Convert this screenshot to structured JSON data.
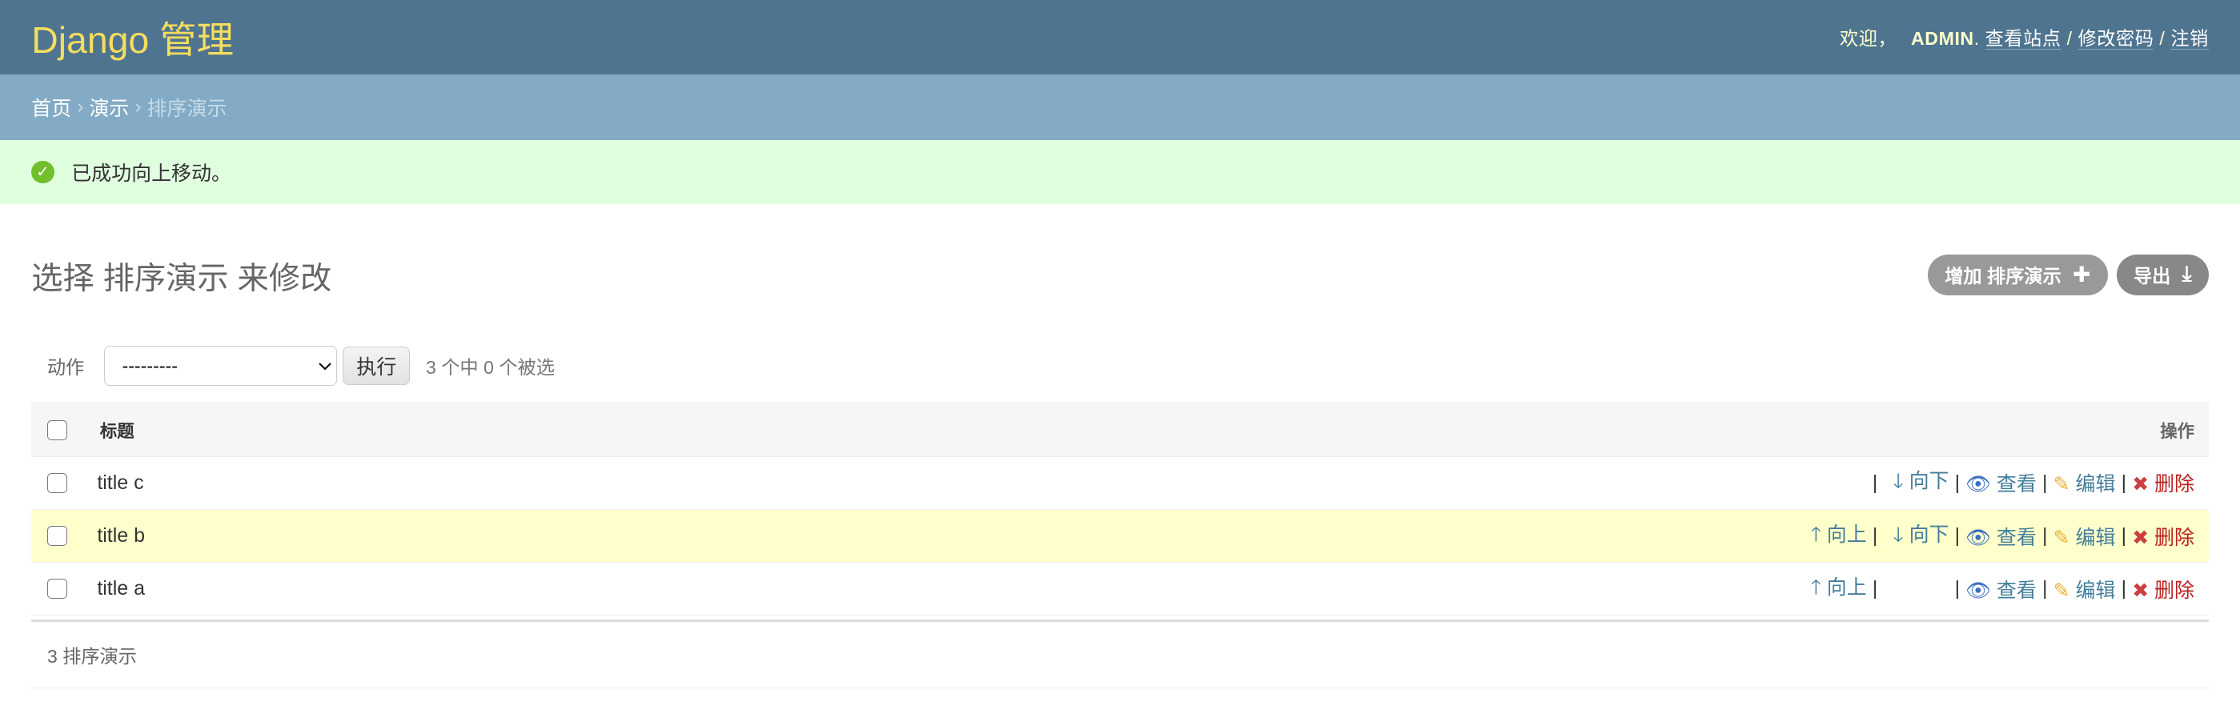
{
  "header": {
    "brand": "Django 管理",
    "welcome": "欢迎，",
    "user": "ADMIN",
    "view_site": "查看站点",
    "change_password": "修改密码",
    "logout": "注销",
    "sep": "/"
  },
  "breadcrumbs": {
    "home": "首页",
    "app": "演示",
    "current": "排序演示",
    "sep": "›"
  },
  "message": {
    "text": "已成功向上移动。",
    "icon": "check-circle-icon",
    "color": "#70bf2b"
  },
  "page": {
    "title": "选择 排序演示 来修改",
    "add_label": "增加 排序演示",
    "export_label": "导出"
  },
  "actions": {
    "label": "动作",
    "selected": "---------",
    "go": "执行",
    "counter": "3 个中 0 个被选"
  },
  "table": {
    "headers": {
      "title": "标题",
      "ops": "操作"
    },
    "rows": [
      {
        "title": "title c",
        "up": "",
        "down": "向下",
        "view": "查看",
        "edit": "编辑",
        "delete": "删除",
        "highlight": false
      },
      {
        "title": "title b",
        "up": "向上",
        "down": "向下",
        "view": "查看",
        "edit": "编辑",
        "delete": "删除",
        "highlight": true
      },
      {
        "title": "title a",
        "up": "向上",
        "down": "",
        "view": "查看",
        "edit": "编辑",
        "delete": "删除",
        "highlight": false
      }
    ]
  },
  "footer": {
    "count": "3 排序演示"
  },
  "colors": {
    "header": "#4f7490",
    "breadcrumbs": "#84abc5",
    "success_bg": "#dfffdf",
    "link": "#447e9b",
    "delete": "#ba2121",
    "highlight": "#ffffcc"
  }
}
